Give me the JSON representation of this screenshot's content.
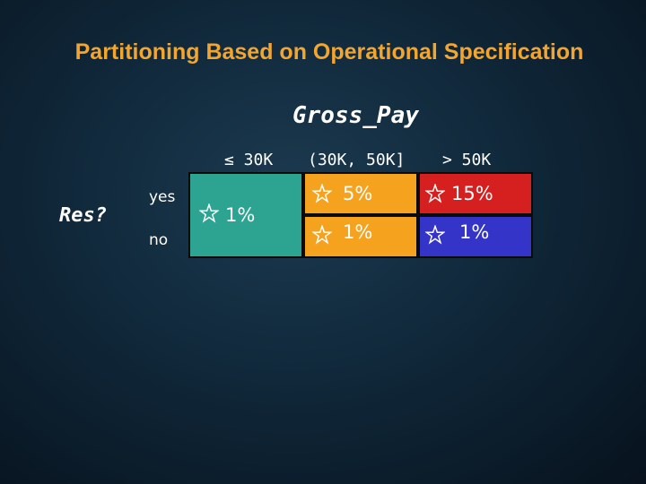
{
  "title": "Partitioning Based on Operational Specification",
  "column_variable": "Gross_Pay",
  "row_variable": "Res?",
  "columns": [
    "≤ 30K",
    "(30K, 50K]",
    "> 50K"
  ],
  "rows": [
    "yes",
    "no"
  ],
  "cells": {
    "le30k": {
      "value": "1%",
      "color": "#2ca491"
    },
    "mid_yes": {
      "value": "5%",
      "color": "#f5a21f"
    },
    "high_yes": {
      "value": "15%",
      "color": "#d61f1f"
    },
    "mid_no": {
      "value": "1%",
      "color": "#f5a21f"
    },
    "high_no": {
      "value": "1%",
      "color": "#3434c8"
    }
  },
  "icons": {
    "marker": "star-outline-icon"
  },
  "colors": {
    "title": "#f2a630",
    "text": "#ffffff",
    "star": "#ffffff"
  }
}
